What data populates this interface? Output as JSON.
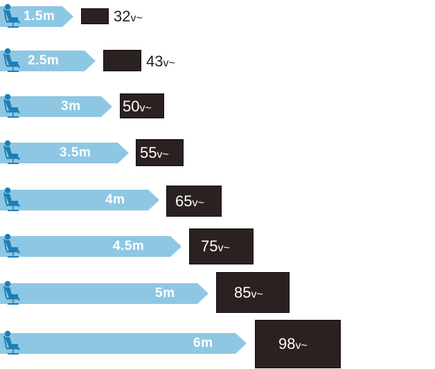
{
  "rows": [
    {
      "distance": "1.5m",
      "num": "32",
      "suffix": "v~"
    },
    {
      "distance": "2.5m",
      "num": "43",
      "suffix": "v~"
    },
    {
      "distance": "3m",
      "num": "50",
      "suffix": "v~"
    },
    {
      "distance": "3.5m",
      "num": "55",
      "suffix": "v~"
    },
    {
      "distance": "4m",
      "num": "65",
      "suffix": "v~"
    },
    {
      "distance": "4.5m",
      "num": "75",
      "suffix": "v~"
    },
    {
      "distance": "5m",
      "num": "85",
      "suffix": "v~"
    },
    {
      "distance": "6m",
      "num": "98",
      "suffix": "v~"
    }
  ],
  "colors": {
    "arrow": "#8ec7e3",
    "chair": "#1c7fb6",
    "tv": "#2a2120"
  },
  "icon": "seated-viewer-icon"
}
